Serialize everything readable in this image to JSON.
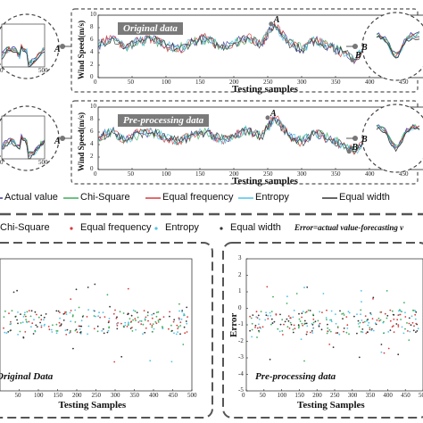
{
  "chart_data": [
    {
      "type": "line",
      "panel": "top",
      "title": "Original data",
      "xlabel": "Testing samples",
      "ylabel": "Wind Speed(m/s)",
      "xlim": [
        0,
        500
      ],
      "ylim": [
        0,
        10
      ],
      "xticks": [
        "0",
        "50",
        "100",
        "150",
        "200",
        "250",
        "300",
        "350",
        "400",
        "450",
        "500"
      ],
      "yticks": [
        "0",
        "2",
        "4",
        "6",
        "8",
        "10"
      ],
      "annotations": [
        "A",
        "B"
      ],
      "annotation_points": [
        [
          255,
          8.6
        ],
        [
          375,
          2.8
        ]
      ],
      "inset_left": {
        "label": "A",
        "xticks": [
          "0",
          "500"
        ]
      },
      "inset_right": {
        "label": "B"
      },
      "x": [
        0,
        20,
        40,
        60,
        80,
        100,
        120,
        140,
        160,
        180,
        200,
        220,
        240,
        260,
        280,
        300,
        320,
        340,
        360,
        380,
        400,
        420,
        440,
        460,
        480,
        500
      ],
      "series": [
        {
          "name": "Actual value",
          "values": [
            5.2,
            6.5,
            4.8,
            5.9,
            6.2,
            5.1,
            4.6,
            5.8,
            6.3,
            4.9,
            5.5,
            6.6,
            5.3,
            8.6,
            5.7,
            4.5,
            6.1,
            5.0,
            4.1,
            2.8,
            5.6,
            6.0,
            4.7,
            5.4,
            6.1,
            8.5
          ]
        },
        {
          "name": "Chi-Square",
          "values": [
            5.0,
            6.3,
            4.9,
            5.7,
            6.0,
            5.2,
            4.8,
            5.6,
            6.1,
            5.0,
            5.4,
            6.4,
            5.4,
            8.2,
            5.6,
            4.7,
            5.9,
            5.1,
            4.3,
            3.1,
            5.4,
            5.8,
            4.9,
            5.3,
            5.9,
            8.1
          ]
        },
        {
          "name": "Equal frequency",
          "values": [
            5.3,
            6.6,
            4.7,
            6.0,
            6.3,
            5.0,
            4.5,
            5.9,
            6.4,
            4.8,
            5.6,
            6.7,
            5.2,
            8.8,
            5.8,
            4.4,
            6.2,
            4.9,
            4.0,
            2.7,
            5.7,
            6.1,
            4.6,
            5.5,
            6.2,
            8.7
          ]
        },
        {
          "name": "Entropy",
          "values": [
            5.1,
            6.4,
            4.9,
            5.8,
            6.1,
            5.1,
            4.7,
            5.7,
            6.2,
            5.0,
            5.5,
            6.5,
            5.3,
            8.4,
            5.7,
            4.6,
            6.0,
            5.0,
            4.2,
            3.0,
            5.5,
            5.9,
            4.8,
            5.4,
            6.0,
            8.3
          ]
        },
        {
          "name": "Equal width",
          "values": [
            5.2,
            6.4,
            4.8,
            5.9,
            6.1,
            5.1,
            4.6,
            5.8,
            6.2,
            4.9,
            5.5,
            6.5,
            5.3,
            8.5,
            5.7,
            4.5,
            6.0,
            5.0,
            4.1,
            2.9,
            5.6,
            6.0,
            4.7,
            5.4,
            6.0,
            8.4
          ]
        }
      ]
    },
    {
      "type": "line",
      "panel": "middle",
      "title": "Pre-processing data",
      "xlabel": "Testing samples",
      "ylabel": "Wind Speed(m/s)",
      "xlim": [
        0,
        500
      ],
      "ylim": [
        0,
        10
      ],
      "xticks": [
        "0",
        "50",
        "100",
        "150",
        "200",
        "250",
        "300",
        "350",
        "400",
        "450",
        "500"
      ],
      "yticks": [
        "0",
        "2",
        "4",
        "6",
        "8",
        "10"
      ],
      "annotations": [
        "A",
        "B"
      ],
      "annotation_points": [
        [
          250,
          8.3
        ],
        [
          370,
          2.9
        ]
      ],
      "inset_left": {
        "label": "A",
        "xticks": [
          "0",
          "500"
        ]
      },
      "inset_right": {
        "label": "B"
      },
      "x": [
        0,
        20,
        40,
        60,
        80,
        100,
        120,
        140,
        160,
        180,
        200,
        220,
        240,
        260,
        280,
        300,
        320,
        340,
        360,
        380,
        400,
        420,
        440,
        460,
        480,
        500
      ],
      "series": [
        {
          "name": "Actual value",
          "values": [
            5.0,
            6.2,
            4.7,
            5.8,
            6.0,
            5.0,
            4.5,
            5.6,
            6.1,
            4.8,
            5.3,
            6.3,
            5.2,
            8.3,
            5.5,
            4.4,
            5.9,
            4.9,
            4.0,
            2.9,
            5.4,
            5.8,
            4.6,
            5.2,
            5.9,
            8.4
          ]
        },
        {
          "name": "Chi-Square",
          "values": [
            4.9,
            6.1,
            4.8,
            5.6,
            5.9,
            5.1,
            4.6,
            5.5,
            6.0,
            4.9,
            5.2,
            6.2,
            5.3,
            8.0,
            5.4,
            4.6,
            5.8,
            5.0,
            4.1,
            3.1,
            5.3,
            5.7,
            4.7,
            5.1,
            5.8,
            8.1
          ]
        },
        {
          "name": "Equal frequency",
          "values": [
            5.1,
            6.3,
            4.6,
            5.9,
            6.1,
            4.9,
            4.4,
            5.7,
            6.2,
            4.7,
            5.4,
            6.4,
            5.1,
            8.5,
            5.6,
            4.3,
            6.0,
            4.8,
            3.9,
            2.8,
            5.5,
            5.9,
            4.5,
            5.3,
            6.0,
            8.6
          ]
        },
        {
          "name": "Entropy",
          "values": [
            5.0,
            6.2,
            4.7,
            5.7,
            6.0,
            5.0,
            4.5,
            5.6,
            6.1,
            4.8,
            5.3,
            6.3,
            5.2,
            8.2,
            5.5,
            4.5,
            5.9,
            4.9,
            4.0,
            3.0,
            5.4,
            5.8,
            4.6,
            5.2,
            5.9,
            8.3
          ]
        },
        {
          "name": "Equal width",
          "values": [
            5.0,
            6.2,
            4.7,
            5.8,
            6.0,
            5.0,
            4.5,
            5.6,
            6.1,
            4.8,
            5.3,
            6.3,
            5.2,
            8.3,
            5.5,
            4.4,
            5.9,
            4.9,
            4.0,
            2.9,
            5.4,
            5.8,
            4.6,
            5.2,
            5.9,
            8.4
          ]
        }
      ]
    },
    {
      "type": "scatter",
      "panel": "bottom-left",
      "title": "Original Data",
      "xlabel": "Testing Samples",
      "ylabel": "",
      "xlim": [
        0,
        500
      ],
      "xticks": [
        "50",
        "100",
        "150",
        "200",
        "250",
        "300",
        "350",
        "400",
        "450",
        "500"
      ],
      "series": [
        {
          "name": "Chi-Square"
        },
        {
          "name": "Equal frequency"
        },
        {
          "name": "Entropy"
        },
        {
          "name": "Equal width"
        }
      ]
    },
    {
      "type": "scatter",
      "panel": "bottom-right",
      "title": "Pre-processing data",
      "xlabel": "Testing Samples",
      "ylabel": "Error",
      "xlim": [
        0,
        500
      ],
      "xticks": [
        "0",
        "50",
        "100",
        "150",
        "200",
        "250",
        "300",
        "350",
        "400",
        "450",
        "500"
      ],
      "yticks": [
        "-5",
        "-4",
        "-3",
        "-2",
        "-1",
        "0",
        "1",
        "2",
        "3"
      ],
      "series": [
        {
          "name": "Chi-Square"
        },
        {
          "name": "Equal frequency"
        },
        {
          "name": "Entropy"
        },
        {
          "name": "Equal width"
        }
      ]
    }
  ],
  "top_legend": [
    "Actual value",
    "Chi-Square",
    "Equal frequency",
    "Entropy",
    "Equal width"
  ],
  "bottom_legend": [
    "Chi-Square",
    "Equal frequency",
    "Entropy",
    "Equal width"
  ],
  "error_note": "Error=actual value-forecasting v",
  "colors": {
    "actual": "#3a3aa8",
    "chi": "#3fae5a",
    "freq": "#d83a3a",
    "entropy": "#4fc3e8",
    "width": "#333333",
    "title_bg": "#7a7a7a",
    "dash": "#555555"
  }
}
